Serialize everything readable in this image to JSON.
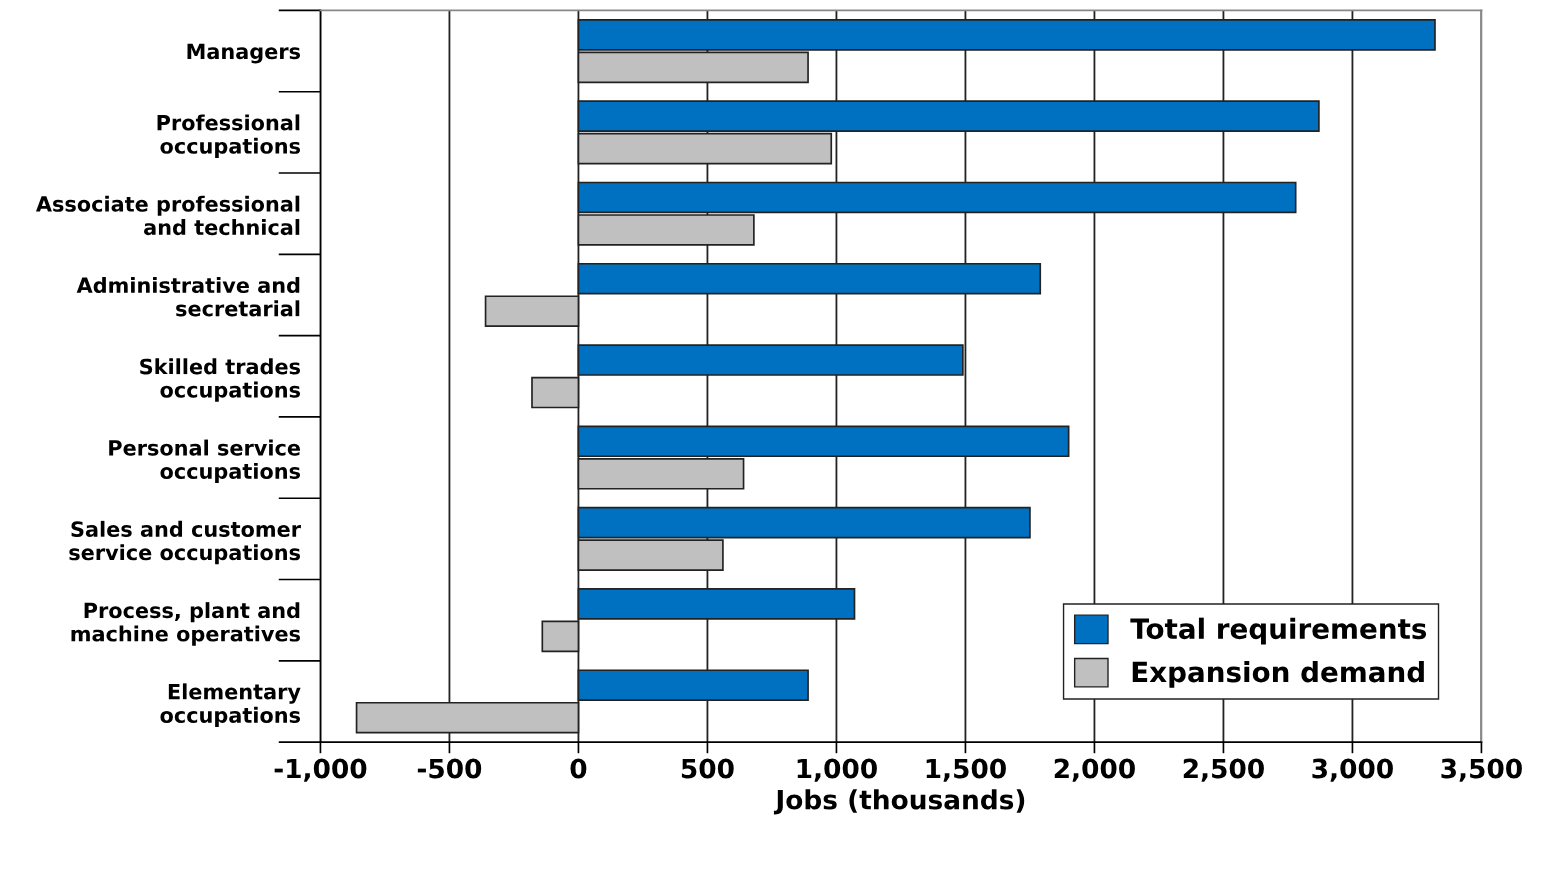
{
  "chart_data": {
    "type": "bar",
    "orientation": "horizontal",
    "xlabel": "Jobs (thousands)",
    "categories": [
      "Managers",
      "Professional\noccupations",
      "Associate professional\nand technical",
      "Administrative and\nsecretarial",
      "Skilled trades\noccupations",
      "Personal service\noccupations",
      "Sales and customer\nservice occupations",
      "Process, plant and\nmachine operatives",
      "Elementary\noccupations"
    ],
    "series": [
      {
        "name": "Total requirements",
        "color": "#0070c0",
        "values": [
          3320,
          2870,
          2780,
          1790,
          1490,
          1900,
          1750,
          1070,
          890
        ]
      },
      {
        "name": "Expansion demand",
        "color": "#c0c0c0",
        "values": [
          890,
          980,
          680,
          -360,
          -180,
          640,
          560,
          -140,
          -860
        ]
      }
    ],
    "xlim": [
      -1000,
      3500
    ],
    "xticks": [
      {
        "value": -1000,
        "label": "-1,000"
      },
      -500,
      0,
      500,
      {
        "value": 1000,
        "label": "1,000"
      },
      {
        "value": 1500,
        "label": "1,500"
      },
      {
        "value": 2000,
        "label": "2,000"
      },
      {
        "value": 2500,
        "label": "2,500"
      },
      {
        "value": 3000,
        "label": "3,000"
      },
      {
        "value": 3500,
        "label": "3,500"
      }
    ],
    "grid": "x",
    "legend": "bottom right"
  }
}
